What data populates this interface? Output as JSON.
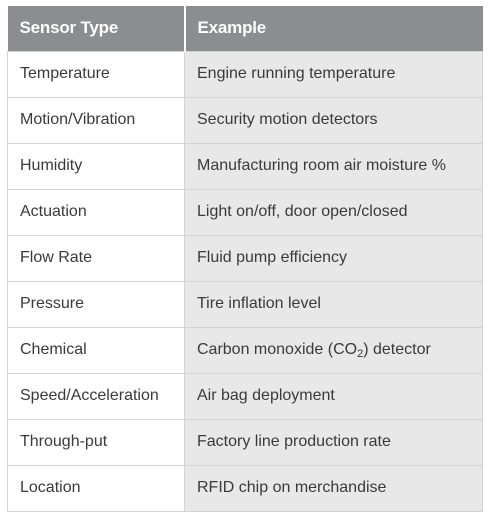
{
  "table": {
    "headers": [
      "Sensor Type",
      "Example"
    ],
    "rows": [
      {
        "type": "Temperature",
        "example": "Engine running temperature"
      },
      {
        "type": "Motion/Vibration",
        "example": "Security motion detectors"
      },
      {
        "type": "Humidity",
        "example": "Manufacturing room air moisture %"
      },
      {
        "type": "Actuation",
        "example": "Light on/off, door open/closed"
      },
      {
        "type": "Flow Rate",
        "example": "Fluid pump efficiency"
      },
      {
        "type": "Pressure",
        "example": "Tire inflation level"
      },
      {
        "type": "Chemical",
        "example_before": "Carbon monoxide (CO",
        "example_sub": "2",
        "example_after": ") detector"
      },
      {
        "type": "Speed/Acceleration",
        "example": "Air bag deployment"
      },
      {
        "type": "Through-put",
        "example": "Factory line production rate"
      },
      {
        "type": "Location",
        "example": "RFID chip on merchandise"
      }
    ]
  }
}
